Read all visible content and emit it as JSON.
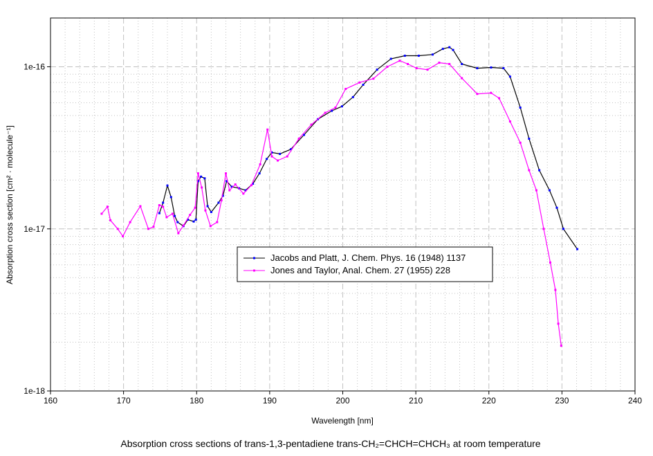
{
  "chart_data": {
    "type": "line",
    "title": "",
    "caption": "Absorption cross sections of trans-1,3-pentadiene trans-CH₂=CHCH=CHCH₃ at room temperature",
    "xlabel": "Wavelength [nm]",
    "ylabel": "Absorption cross section [cm² · molecule⁻¹]",
    "xlim": [
      160,
      240
    ],
    "ylim": [
      1e-18,
      2e-16
    ],
    "yscale": "log",
    "xticks": [
      160,
      170,
      180,
      190,
      200,
      210,
      220,
      230,
      240
    ],
    "yticks": [
      {
        "value": 1e-16,
        "label": "1e-16"
      },
      {
        "value": 1e-17,
        "label": "1e-17"
      },
      {
        "value": 1e-18,
        "label": "1e-18"
      }
    ],
    "grid": true,
    "legend_position": "center",
    "series": [
      {
        "name": "Jacobs and Platt, J. Chem. Phys. 16 (1948) 1137",
        "line_color": "#000000",
        "marker_color": "#0000ff",
        "x": [
          174.9,
          175.4,
          176.0,
          176.5,
          177.0,
          177.4,
          178.2,
          178.8,
          179.6,
          179.9,
          180.2,
          180.6,
          181.1,
          181.5,
          182.0,
          183.0,
          183.6,
          184.1,
          184.8,
          185.8,
          186.7,
          187.7,
          188.6,
          189.6,
          190.3,
          191.4,
          192.9,
          194.7,
          196.6,
          198.5,
          199.9,
          201.4,
          202.8,
          204.7,
          206.6,
          208.5,
          210.4,
          212.3,
          213.7,
          214.6,
          215.1,
          216.3,
          218.4,
          220.3,
          222.0,
          222.9,
          224.3,
          225.5,
          226.9,
          228.3,
          229.3,
          230.2,
          232.1
        ],
        "y": [
          1.25e-17,
          1.45e-17,
          1.85e-17,
          1.57e-17,
          1.2e-17,
          1.1e-17,
          1.04e-17,
          1.14e-17,
          1.11e-17,
          1.14e-17,
          1.97e-17,
          2.1e-17,
          2.05e-17,
          1.38e-17,
          1.27e-17,
          1.45e-17,
          1.6e-17,
          1.97e-17,
          1.82e-17,
          1.78e-17,
          1.73e-17,
          1.9e-17,
          2.2e-17,
          2.7e-17,
          2.96e-17,
          2.9e-17,
          3.1e-17,
          3.8e-17,
          4.75e-17,
          5.35e-17,
          5.7e-17,
          6.5e-17,
          7.75e-17,
          9.6e-17,
          1.12e-16,
          1.17e-16,
          1.17e-16,
          1.19e-16,
          1.29e-16,
          1.32e-16,
          1.27e-16,
          1.04e-16,
          9.8e-17,
          9.9e-17,
          9.8e-17,
          8.7e-17,
          5.6e-17,
          3.6e-17,
          2.3e-17,
          1.73e-17,
          1.35e-17,
          1e-17,
          7.5e-18
        ]
      },
      {
        "name": "Jones and Taylor, Anal. Chem. 27 (1955) 228",
        "line_color": "#ff00ff",
        "marker_color": "#ff00ff",
        "x": [
          167.0,
          167.8,
          168.2,
          169.2,
          169.9,
          170.9,
          172.3,
          173.4,
          174.1,
          174.9,
          175.4,
          175.9,
          176.7,
          177.5,
          178.2,
          179.1,
          179.8,
          180.2,
          180.7,
          181.2,
          181.9,
          182.8,
          183.4,
          184.0,
          184.5,
          185.3,
          186.4,
          187.5,
          188.7,
          189.7,
          190.3,
          191.1,
          192.4,
          194.0,
          195.7,
          197.6,
          199.0,
          200.4,
          202.3,
          204.2,
          206.1,
          207.8,
          208.9,
          210.1,
          211.6,
          213.2,
          214.6,
          216.3,
          218.4,
          220.3,
          221.4,
          222.9,
          224.3,
          225.5,
          226.5,
          227.5,
          228.4,
          229.1,
          229.5,
          229.9
        ],
        "y": [
          1.24e-17,
          1.37e-17,
          1.13e-17,
          1e-17,
          9e-18,
          1.1e-17,
          1.38e-17,
          1e-17,
          1.03e-17,
          1.4e-17,
          1.37e-17,
          1.18e-17,
          1.24e-17,
          9.4e-18,
          1.05e-17,
          1.22e-17,
          1.35e-17,
          2.2e-17,
          1.8e-17,
          1.3e-17,
          1.04e-17,
          1.1e-17,
          1.5e-17,
          2.2e-17,
          1.73e-17,
          1.88e-17,
          1.65e-17,
          1.86e-17,
          2.5e-17,
          4.1e-17,
          2.8e-17,
          2.64e-17,
          2.8e-17,
          3.6e-17,
          4.4e-17,
          5.2e-17,
          5.6e-17,
          7.3e-17,
          8e-17,
          8.45e-17,
          1e-16,
          1.09e-16,
          1.04e-16,
          9.8e-17,
          9.6e-17,
          1.06e-16,
          1.04e-16,
          8.5e-17,
          6.8e-17,
          6.9e-17,
          6.4e-17,
          4.6e-17,
          3.4e-17,
          2.3e-17,
          1.73e-17,
          1e-17,
          6.2e-18,
          4.2e-18,
          2.6e-18,
          1.9e-18
        ]
      }
    ]
  }
}
